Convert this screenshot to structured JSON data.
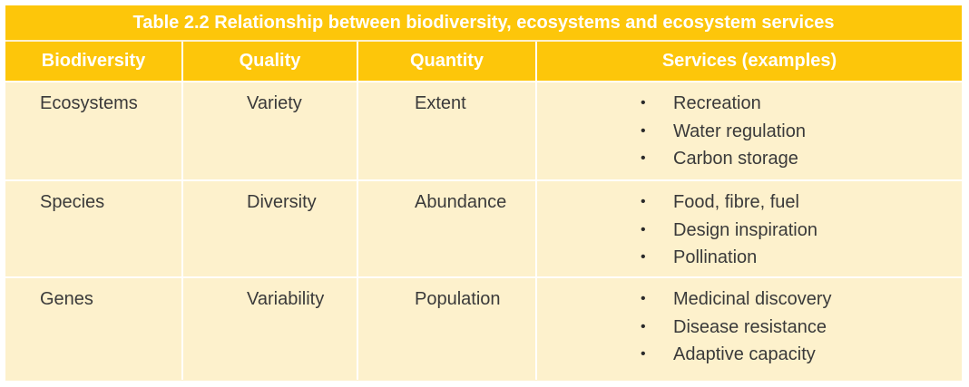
{
  "table": {
    "title": "Table 2.2 Relationship between biodiversity, ecosystems and ecosystem services",
    "headers": [
      "Biodiversity",
      "Quality",
      "Quantity",
      "Services (examples)"
    ],
    "rows": [
      {
        "biodiversity": "Ecosystems",
        "quality": "Variety",
        "quantity": "Extent",
        "services": [
          "Recreation",
          "Water regulation",
          "Carbon storage"
        ]
      },
      {
        "biodiversity": "Species",
        "quality": "Diversity",
        "quantity": "Abundance",
        "services": [
          "Food, fibre, fuel",
          "Design inspiration",
          "Pollination"
        ]
      },
      {
        "biodiversity": "Genes",
        "quality": "Variability",
        "quantity": "Population",
        "services": [
          "Medicinal discovery",
          "Disease resistance",
          "Adaptive capacity"
        ]
      }
    ],
    "bullet": "•"
  },
  "colors": {
    "header_bg": "#fdc60a",
    "header_text": "#ffffff",
    "cell_bg": "#fdf1cc",
    "cell_text": "#3a3a3a",
    "divider": "#ffffff"
  }
}
